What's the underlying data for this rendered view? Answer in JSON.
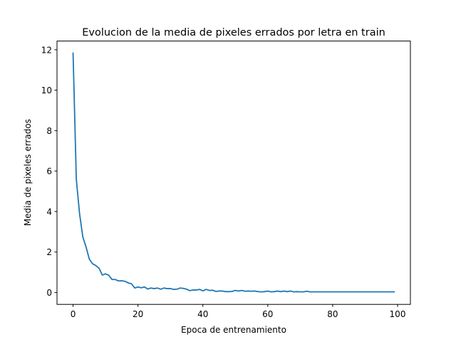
{
  "chart_data": {
    "type": "line",
    "title": "Evolucion de la media de pixeles errados por letra en train",
    "xlabel": "Epoca de entrenamiento",
    "ylabel": "Media de pixeles errados",
    "xlim": [
      -4.95,
      103.95
    ],
    "ylim": [
      -0.59,
      12.43
    ],
    "xticks": [
      0,
      20,
      40,
      60,
      80,
      100
    ],
    "yticks": [
      0,
      2,
      4,
      6,
      8,
      10,
      12
    ],
    "grid": false,
    "color": "#1f77b4",
    "series": [
      {
        "x": [
          0,
          1,
          2,
          3,
          4,
          5,
          6,
          7,
          8,
          9,
          10,
          11,
          12,
          13,
          14,
          15,
          16,
          17,
          18,
          19,
          20,
          21,
          22,
          23,
          24,
          25,
          26,
          27,
          28,
          29,
          30,
          31,
          32,
          33,
          34,
          35,
          36,
          37,
          38,
          39,
          40,
          41,
          42,
          43,
          44,
          45,
          46,
          47,
          48,
          49,
          50,
          51,
          52,
          53,
          54,
          55,
          56,
          57,
          58,
          59,
          60,
          61,
          62,
          63,
          64,
          65,
          66,
          67,
          68,
          69,
          70,
          71,
          72,
          73,
          74,
          75,
          76,
          77,
          78,
          79,
          80,
          81,
          82,
          83,
          84,
          85,
          86,
          87,
          88,
          89,
          90,
          91,
          92,
          93,
          94,
          95,
          96,
          97,
          98,
          99
        ],
        "y": [
          11.84,
          5.6,
          3.9,
          2.75,
          2.25,
          1.65,
          1.42,
          1.33,
          1.2,
          0.86,
          0.92,
          0.85,
          0.64,
          0.64,
          0.57,
          0.58,
          0.55,
          0.47,
          0.43,
          0.22,
          0.27,
          0.23,
          0.27,
          0.17,
          0.22,
          0.19,
          0.22,
          0.16,
          0.22,
          0.19,
          0.19,
          0.15,
          0.16,
          0.22,
          0.2,
          0.16,
          0.09,
          0.12,
          0.12,
          0.15,
          0.08,
          0.15,
          0.1,
          0.11,
          0.05,
          0.07,
          0.07,
          0.04,
          0.04,
          0.05,
          0.1,
          0.07,
          0.1,
          0.06,
          0.07,
          0.06,
          0.07,
          0.04,
          0.03,
          0.04,
          0.07,
          0.03,
          0.04,
          0.07,
          0.04,
          0.07,
          0.04,
          0.07,
          0.03,
          0.04,
          0.03,
          0.03,
          0.06,
          0.03,
          0.03,
          0.03,
          0.03,
          0.03,
          0.03,
          0.03,
          0.03,
          0.03,
          0.03,
          0.03,
          0.03,
          0.03,
          0.03,
          0.03,
          0.03,
          0.03,
          0.03,
          0.03,
          0.03,
          0.03,
          0.03,
          0.03,
          0.03,
          0.03,
          0.03,
          0.03
        ]
      }
    ]
  }
}
